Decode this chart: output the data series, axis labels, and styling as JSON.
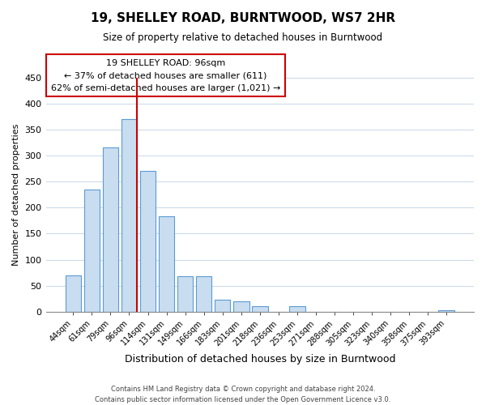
{
  "title": "19, SHELLEY ROAD, BURNTWOOD, WS7 2HR",
  "subtitle": "Size of property relative to detached houses in Burntwood",
  "xlabel": "Distribution of detached houses by size in Burntwood",
  "ylabel": "Number of detached properties",
  "footer_line1": "Contains HM Land Registry data © Crown copyright and database right 2024.",
  "footer_line2": "Contains public sector information licensed under the Open Government Licence v3.0.",
  "bin_labels": [
    "44sqm",
    "61sqm",
    "79sqm",
    "96sqm",
    "114sqm",
    "131sqm",
    "149sqm",
    "166sqm",
    "183sqm",
    "201sqm",
    "218sqm",
    "236sqm",
    "253sqm",
    "271sqm",
    "288sqm",
    "305sqm",
    "323sqm",
    "340sqm",
    "358sqm",
    "375sqm",
    "393sqm"
  ],
  "bar_values": [
    70,
    235,
    315,
    370,
    270,
    183,
    68,
    68,
    23,
    20,
    10,
    0,
    11,
    0,
    0,
    0,
    0,
    0,
    0,
    0,
    2
  ],
  "bar_color": "#c9ddf0",
  "bar_edge_color": "#5b9bd5",
  "vline_color": "#cc0000",
  "annotation_text": "19 SHELLEY ROAD: 96sqm\n← 37% of detached houses are smaller (611)\n62% of semi-detached houses are larger (1,021) →",
  "annotation_box_color": "white",
  "annotation_box_edge_color": "#cc0000",
  "ylim": [
    0,
    450
  ],
  "yticks": [
    0,
    50,
    100,
    150,
    200,
    250,
    300,
    350,
    400,
    450
  ],
  "figsize": [
    6.0,
    5.0
  ],
  "dpi": 100
}
